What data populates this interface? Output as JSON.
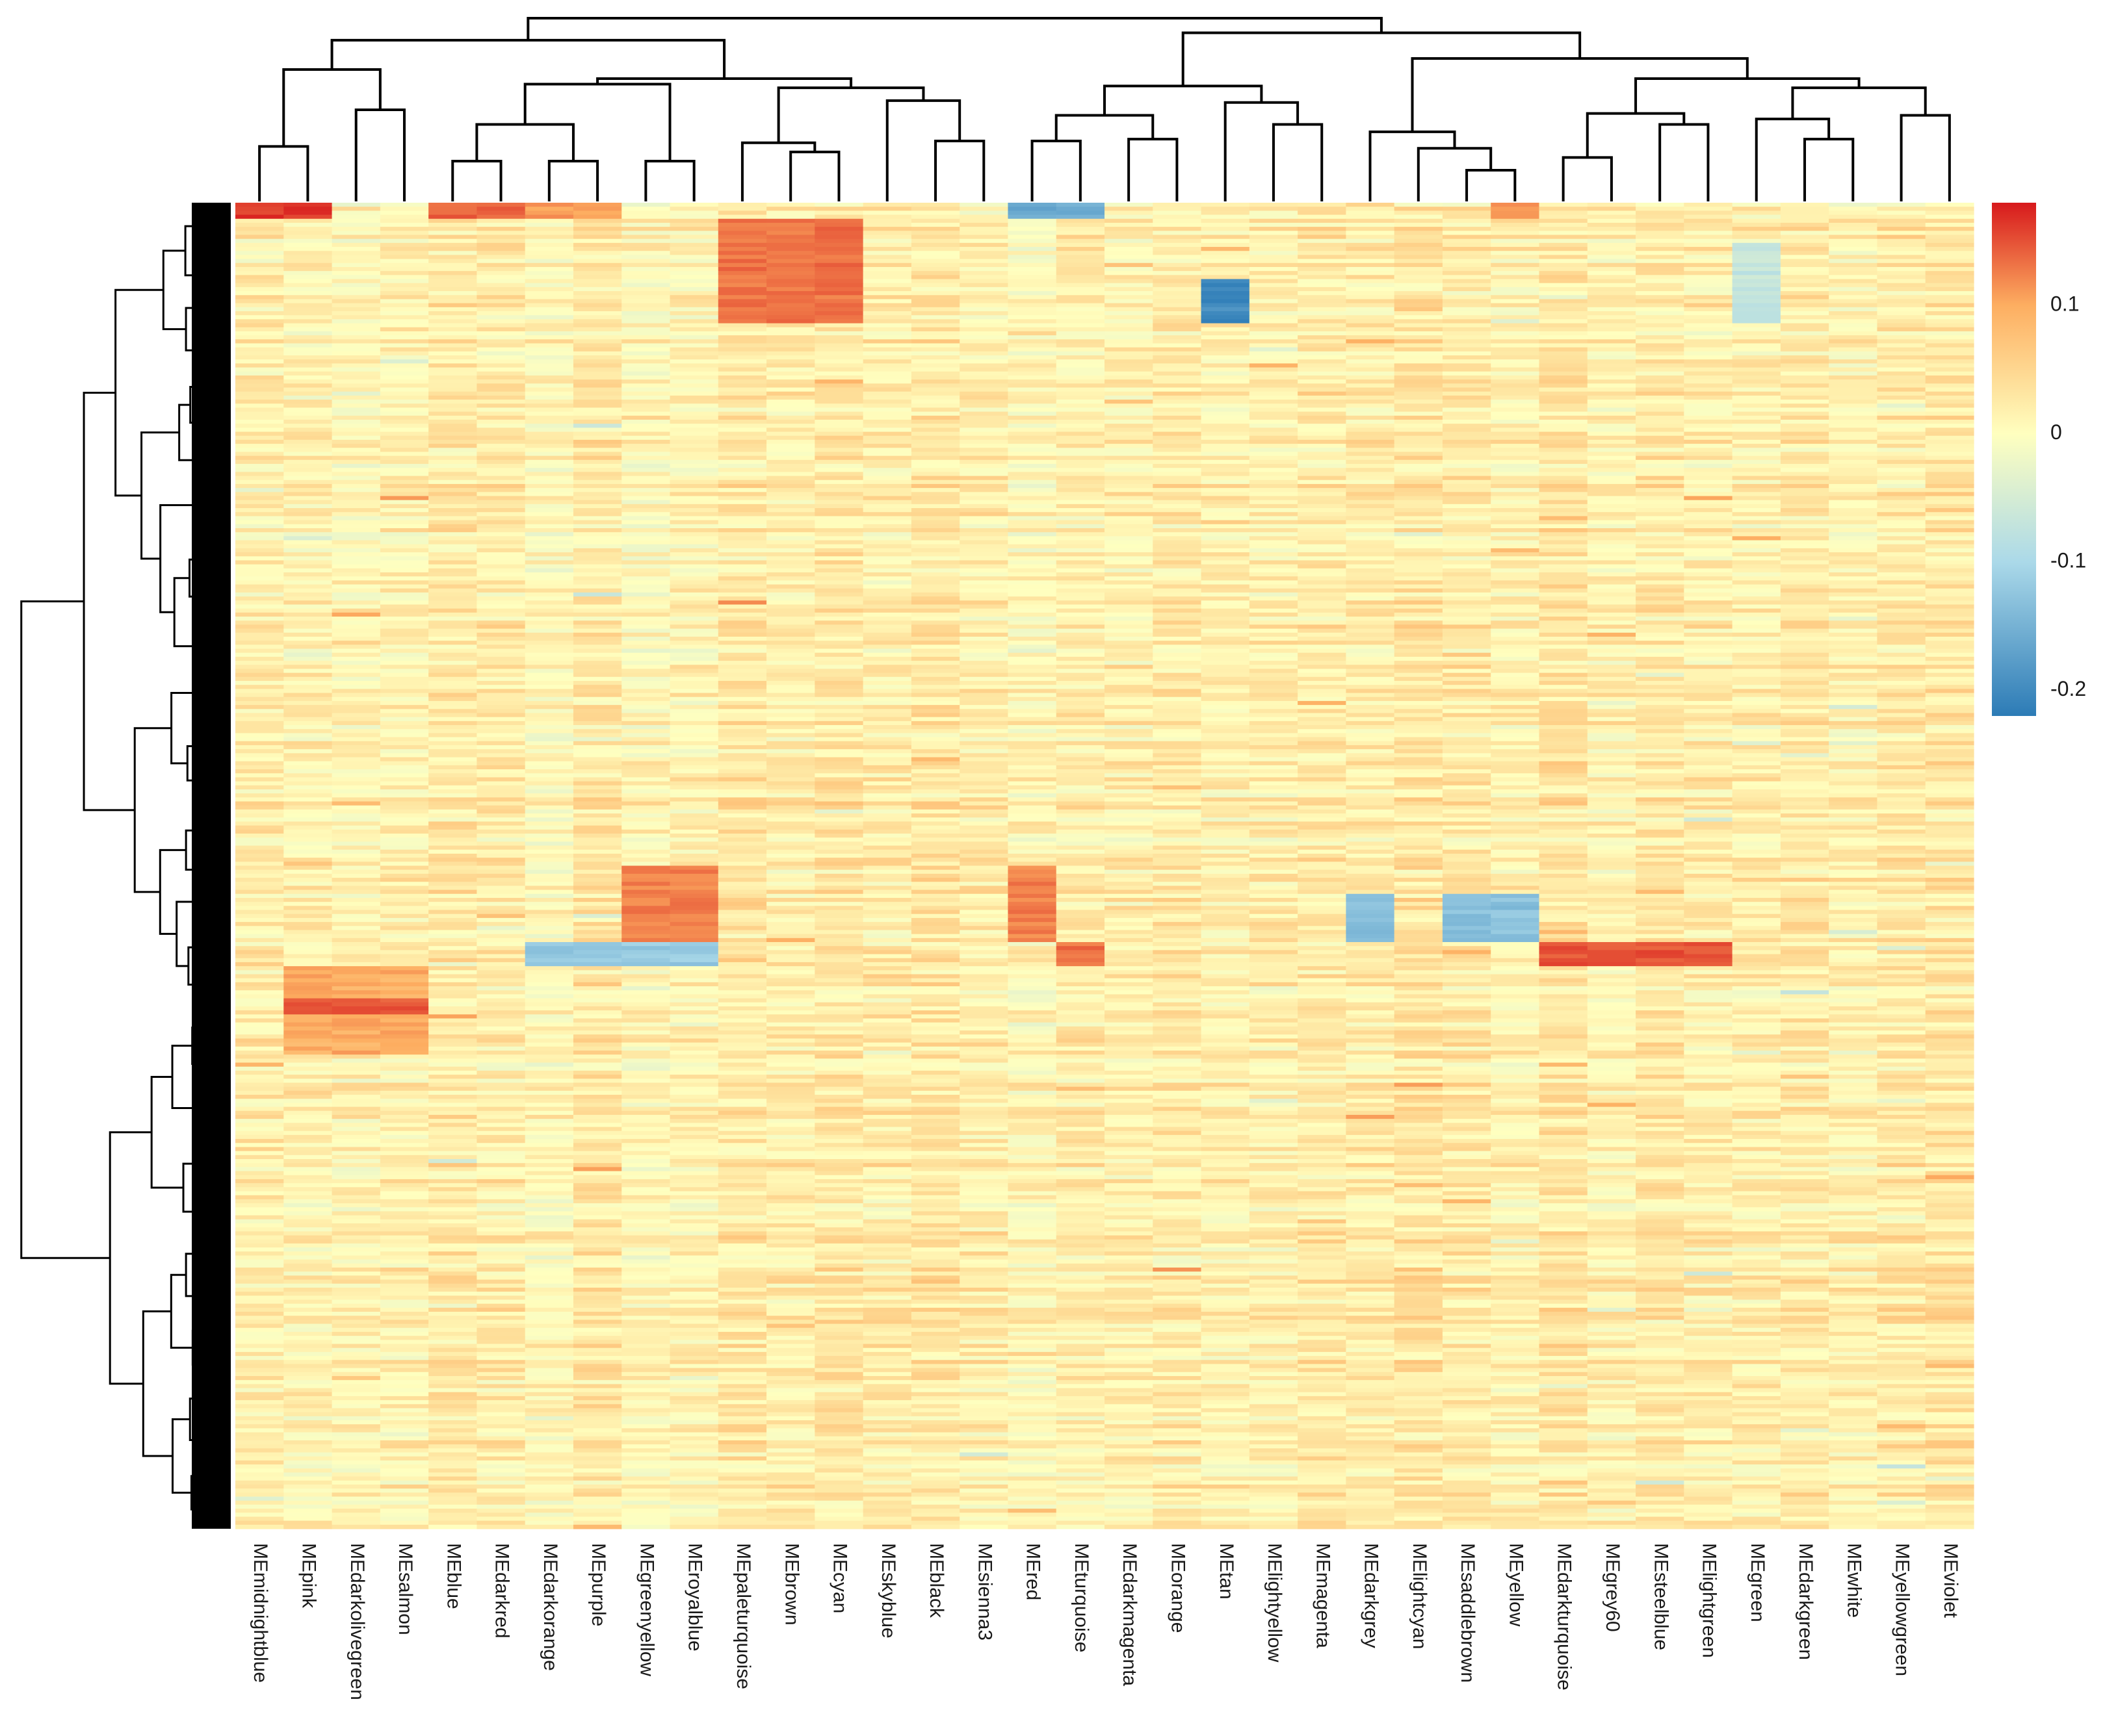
{
  "chart_data": {
    "type": "heatmap",
    "title": "",
    "xlabel": "",
    "ylabel": "",
    "row_dendrogram": true,
    "column_dendrogram": true,
    "columns": [
      "MEmidnightblue",
      "MEpink",
      "MEdarkolivegreen",
      "MEsalmon",
      "MEblue",
      "MEdarkred",
      "MEdarkorange",
      "MEpurple",
      "MEgreenyellow",
      "MEroyalblue",
      "MEpaleturquoise",
      "MEbrown",
      "MEcyan",
      "MEskyblue",
      "MEblack",
      "MEsienna3",
      "MEred",
      "MEturquoise",
      "MEdarkmagenta",
      "MEorange",
      "MEtan",
      "MElightyellow",
      "MEmagenta",
      "MEdarkgrey",
      "MElightcyan",
      "MEsaddlebrown",
      "MEyellow",
      "MEdarkturquoise",
      "MEgrey60",
      "MEsteelblue",
      "MElightgreen",
      "MEgreen",
      "MEdarkgreen",
      "MEwhite",
      "MEyellowgreen",
      "MEviolet"
    ],
    "legend": {
      "position": "right",
      "ticks": [
        0.1,
        0,
        -0.1,
        -0.2
      ],
      "tick_labels": [
        "0.1",
        "0",
        "-0.1",
        "-0.2"
      ],
      "range": [
        -0.22,
        0.18
      ],
      "colors": [
        "#2c7bb6",
        "#abd9e9",
        "#ffffbf",
        "#fdae61",
        "#d7191c"
      ]
    },
    "column_blocks": [
      {
        "row_range": [
          0,
          0.01
        ],
        "columns": [
          "MEmidnightblue",
          "MEpink"
        ],
        "value": 0.16
      },
      {
        "row_range": [
          0,
          0.01
        ],
        "columns": [
          "MEblue",
          "MEdarkred"
        ],
        "value": 0.13
      },
      {
        "row_range": [
          0,
          0.01
        ],
        "columns": [
          "MEdarkorange",
          "MEpurple"
        ],
        "value": 0.09
      },
      {
        "row_range": [
          0,
          0.01
        ],
        "columns": [
          "MEred",
          "MEturquoise"
        ],
        "value": -0.16
      },
      {
        "row_range": [
          0,
          0.01
        ],
        "columns": [
          "MEyellow"
        ],
        "value": 0.09
      },
      {
        "row_range": [
          0.01,
          0.09
        ],
        "columns": [
          "MEpaleturquoise",
          "MEbrown",
          "MEcyan"
        ],
        "value": 0.12
      },
      {
        "row_range": [
          0.055,
          0.09
        ],
        "columns": [
          "MEtan"
        ],
        "value": -0.2
      },
      {
        "row_range": [
          0.03,
          0.09
        ],
        "columns": [
          "MEgreen"
        ],
        "value": -0.07
      },
      {
        "row_range": [
          0.5,
          0.555
        ],
        "columns": [
          "MEgreenyellow",
          "MEroyalblue"
        ],
        "value": 0.11
      },
      {
        "row_range": [
          0.5,
          0.555
        ],
        "columns": [
          "MEred"
        ],
        "value": 0.11
      },
      {
        "row_range": [
          0.52,
          0.555
        ],
        "columns": [
          "MEdarkgrey",
          "MEsaddlebrown",
          "MEyellow"
        ],
        "value": -0.13
      },
      {
        "row_range": [
          0.555,
          0.575
        ],
        "columns": [
          "MEdarkorange",
          "MEpurple",
          "MEgreenyellow",
          "MEroyalblue"
        ],
        "value": -0.12
      },
      {
        "row_range": [
          0.555,
          0.575
        ],
        "columns": [
          "MEdarkturquoise",
          "MEgrey60",
          "MEsteelblue",
          "MElightgreen"
        ],
        "value": 0.14
      },
      {
        "row_range": [
          0.555,
          0.575
        ],
        "columns": [
          "MEturquoise"
        ],
        "value": 0.12
      },
      {
        "row_range": [
          0.575,
          0.64
        ],
        "columns": [
          "MEpink",
          "MEdarkolivegreen",
          "MEsalmon"
        ],
        "value": 0.08
      },
      {
        "row_range": [
          0.6,
          0.61
        ],
        "columns": [
          "MEpink",
          "MEdarkolivegreen",
          "MEsalmon"
        ],
        "value": 0.14
      }
    ],
    "background_range": [
      -0.04,
      0.06
    ]
  }
}
